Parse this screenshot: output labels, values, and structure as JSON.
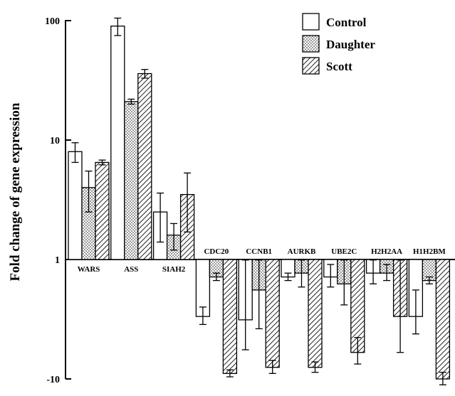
{
  "chart_data": {
    "type": "bar",
    "scale": "log-symmetric (fold change)",
    "ylabel": "Fold change of gene expression",
    "yticks": [
      "100",
      "10",
      "1",
      "-10"
    ],
    "categories": [
      "WARS",
      "ASS",
      "SIAH2",
      "CDC20",
      "CCNB1",
      "AURKB",
      "UBE2C",
      "H2H2AA",
      "H1H2BM"
    ],
    "series": [
      {
        "name": "Control",
        "pattern": "white",
        "values": [
          8,
          90,
          2.5,
          -3,
          -3.2,
          -1.4,
          -1.4,
          -1.3,
          -3
        ],
        "err": [
          1.5,
          15,
          1.1,
          0.5,
          2.5,
          0.1,
          0.3,
          0.3,
          1.2
        ]
      },
      {
        "name": "Daughter",
        "pattern": "dotted",
        "values": [
          4,
          21,
          1.6,
          -1.4,
          -1.8,
          -1.3,
          -1.6,
          -1.3,
          -1.5
        ],
        "err": [
          1.5,
          1,
          0.4,
          0.1,
          2,
          0.4,
          0.8,
          0.2,
          0.1
        ]
      },
      {
        "name": "Scott",
        "pattern": "hatched",
        "values": [
          6.5,
          36,
          3.5,
          -9,
          -8,
          -8,
          -6,
          -3,
          -10
        ],
        "err": [
          0.3,
          3,
          1.8,
          0.6,
          1,
          0.8,
          1.5,
          3,
          1.2
        ]
      }
    ],
    "legend_position": "top-right",
    "grid": false
  }
}
